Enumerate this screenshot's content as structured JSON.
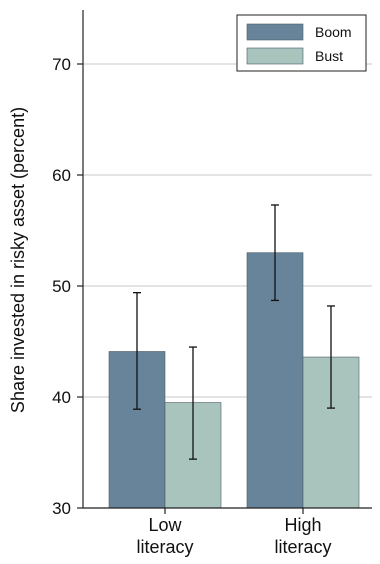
{
  "chart_data": {
    "type": "bar",
    "title": "",
    "xlabel": "",
    "ylabel": "Share invested in risky asset (percent)",
    "ylim": [
      30,
      75
    ],
    "yticks": [
      30,
      40,
      50,
      60,
      70
    ],
    "grid": true,
    "legend_position": "top-right",
    "categories": [
      {
        "lines": [
          "Low",
          "literacy"
        ]
      },
      {
        "lines": [
          "High",
          "literacy"
        ]
      }
    ],
    "series": [
      {
        "name": "Boom",
        "color": "#67849a",
        "values": [
          44.1,
          53.0
        ],
        "error_low": [
          38.9,
          48.7
        ],
        "error_high": [
          49.4,
          57.3
        ]
      },
      {
        "name": "Bust",
        "color": "#a9c3bd",
        "values": [
          39.5,
          43.6
        ],
        "error_low": [
          34.4,
          39.0
        ],
        "error_high": [
          44.5,
          48.2
        ]
      }
    ]
  }
}
